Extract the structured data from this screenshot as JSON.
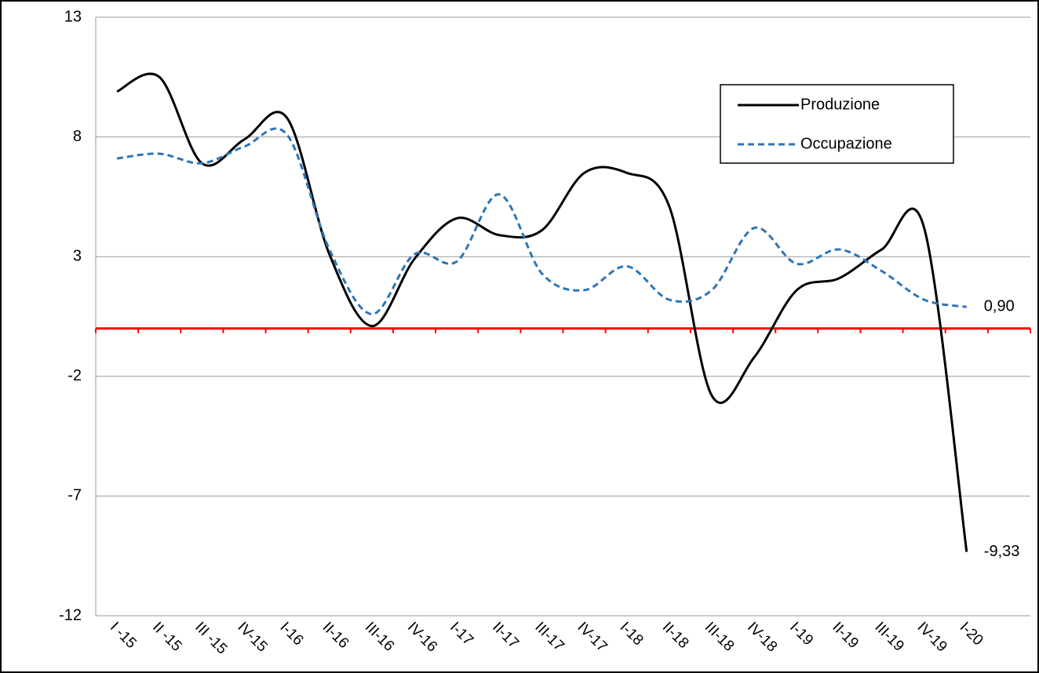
{
  "chart_data": {
    "type": "line",
    "categories": [
      "I -15",
      "II -15",
      "III -15",
      "IV-15",
      "I-16",
      "II-16",
      "III-16",
      "IV-16",
      "I-17",
      "II-17",
      "III-17",
      "IV-17",
      "I-18",
      "II-18",
      "III-18",
      "IV-18",
      "I-19",
      "II-19",
      "III-19",
      "IV-19",
      "I-20",
      null
    ],
    "series": [
      {
        "name": "Produzione",
        "color": "#000000",
        "dash": false,
        "values": [
          9.9,
          10.5,
          6.9,
          7.9,
          8.8,
          3.1,
          0.1,
          2.9,
          4.6,
          3.9,
          4.1,
          6.5,
          6.5,
          5.1,
          -2.8,
          -1.2,
          1.6,
          2.1,
          3.3,
          4.2,
          -9.33,
          null
        ],
        "value_labels": [
          null,
          null,
          null,
          null,
          null,
          null,
          null,
          null,
          null,
          null,
          null,
          null,
          null,
          null,
          null,
          null,
          null,
          null,
          null,
          null,
          "-9,33",
          null
        ]
      },
      {
        "name": "Occupazione",
        "color": "#2e75b6",
        "dash": true,
        "values": [
          7.1,
          7.3,
          6.9,
          7.6,
          8.1,
          3.3,
          0.6,
          3.1,
          2.8,
          5.6,
          2.3,
          1.6,
          2.6,
          1.2,
          1.6,
          4.2,
          2.7,
          3.3,
          2.4,
          1.2,
          0.9,
          null
        ],
        "value_labels": [
          null,
          null,
          null,
          null,
          null,
          null,
          null,
          null,
          null,
          null,
          null,
          null,
          null,
          null,
          null,
          null,
          null,
          null,
          null,
          null,
          "0,90",
          null
        ]
      }
    ],
    "ylim": [
      -12,
      13
    ],
    "yticks": [
      -12,
      -7,
      -2,
      3,
      8,
      13
    ],
    "grid": true,
    "zero_line_color": "#ff0000",
    "legend": "upper right"
  }
}
